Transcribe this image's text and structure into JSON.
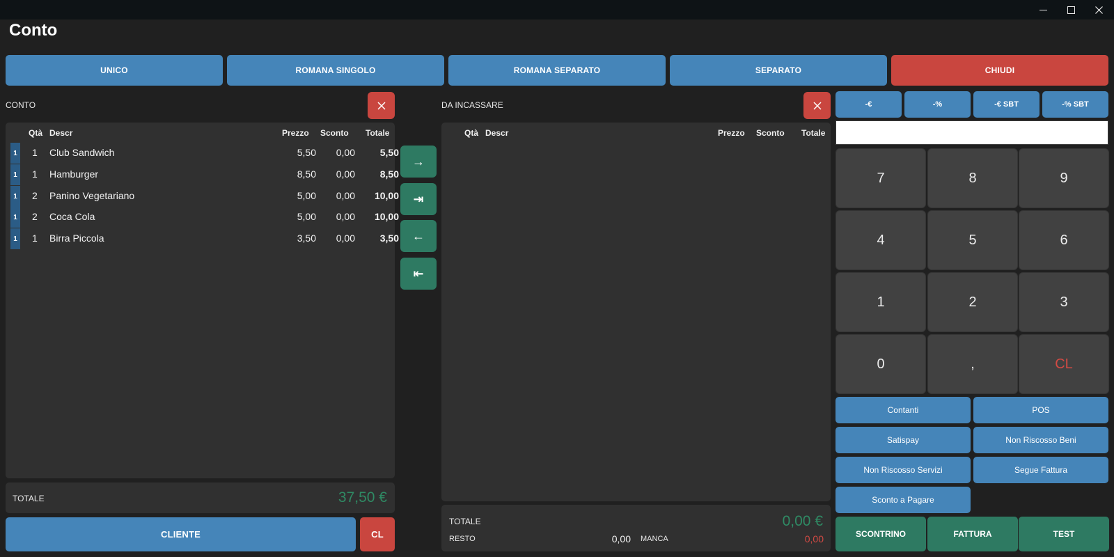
{
  "window": {
    "title": "Conto",
    "controls": {
      "minimize_icon": "minimize-icon",
      "maximize_icon": "maximize-icon",
      "close_icon": "close-icon"
    }
  },
  "tabs": [
    {
      "label": "UNICO"
    },
    {
      "label": "ROMANA SINGOLO"
    },
    {
      "label": "ROMANA SEPARATO"
    },
    {
      "label": "SEPARATO"
    },
    {
      "label": "CHIUDI"
    }
  ],
  "conto": {
    "label": "CONTO",
    "columns": {
      "qty": "Qtà",
      "descr": "Descr",
      "price": "Prezzo",
      "discount": "Sconto",
      "total": "Totale"
    },
    "items": [
      {
        "tag": "1",
        "qty": "1",
        "descr": "Club Sandwich",
        "price": "5,50",
        "discount": "0,00",
        "total": "5,50"
      },
      {
        "tag": "1",
        "qty": "1",
        "descr": "Hamburger",
        "price": "8,50",
        "discount": "0,00",
        "total": "8,50"
      },
      {
        "tag": "1",
        "qty": "2",
        "descr": "Panino Vegetariano",
        "price": "5,00",
        "discount": "0,00",
        "total": "10,00"
      },
      {
        "tag": "1",
        "qty": "2",
        "descr": "Coca Cola",
        "price": "5,00",
        "discount": "0,00",
        "total": "10,00"
      },
      {
        "tag": "1",
        "qty": "1",
        "descr": "Birra Piccola",
        "price": "3,50",
        "discount": "0,00",
        "total": "3,50"
      }
    ],
    "total_label": "TOTALE",
    "total_value": "37,50 €",
    "cliente_label": "CLIENTE",
    "cl_label": "CL"
  },
  "transfer": {
    "move_one": "→",
    "move_all": "⇥",
    "back_one": "←",
    "back_all": "⇤"
  },
  "incassare": {
    "label": "DA INCASSARE",
    "columns": {
      "qty": "Qtà",
      "descr": "Descr",
      "price": "Prezzo",
      "discount": "Sconto",
      "total": "Totale"
    },
    "total_label": "TOTALE",
    "total_value": "0,00 €",
    "resto_label": "RESTO",
    "resto_value": "0,00",
    "manca_label": "MANCA",
    "manca_value": "0,00"
  },
  "discounts": [
    {
      "label": "-€"
    },
    {
      "label": "-%"
    },
    {
      "label": "-€ SBT"
    },
    {
      "label": "-% SBT"
    }
  ],
  "keypad": {
    "display_value": "",
    "keys": [
      "7",
      "8",
      "9",
      "4",
      "5",
      "6",
      "1",
      "2",
      "3",
      "0",
      ",",
      "CL"
    ]
  },
  "payments": [
    {
      "label": "Contanti"
    },
    {
      "label": "POS"
    },
    {
      "label": "Satispay"
    },
    {
      "label": "Non Riscosso Beni"
    },
    {
      "label": "Non Riscosso Servizi"
    },
    {
      "label": "Segue Fattura"
    },
    {
      "label": "Sconto a Pagare"
    }
  ],
  "actions": [
    {
      "label": "SCONTRINO"
    },
    {
      "label": "FATTURA"
    },
    {
      "label": "TEST"
    }
  ],
  "colors": {
    "accent_blue": "#4585b9",
    "danger_red": "#c9463f",
    "confirm_green": "#2e7a62",
    "total_green": "#2f8a64",
    "manca_red": "#d24a44"
  }
}
